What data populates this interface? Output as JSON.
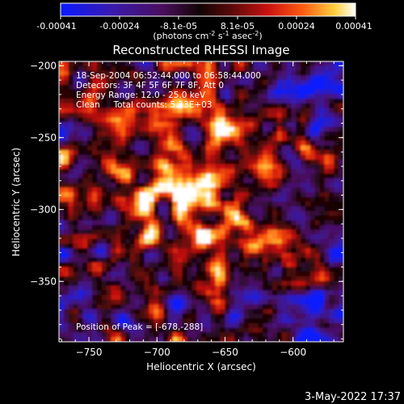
{
  "colorbar": {
    "ticks": [
      "-0.00041",
      "-0.00024",
      "-8.1e-05",
      "8.1e-05",
      "0.00024",
      "0.00041"
    ],
    "range": [
      -0.00041,
      0.00041
    ],
    "units_main": "(photons cm",
    "units_sup1": "-2",
    "units_mid1": " s",
    "units_sup2": "-1",
    "units_mid2": " asec",
    "units_sup3": "-2",
    "units_end": ")"
  },
  "chart_data": {
    "type": "heatmap",
    "title": "Reconstructed RHESSI Image",
    "xlabel": "Heliocentric X (arcsec)",
    "ylabel": "Heliocentric Y (arcsec)",
    "xlim": [
      -772,
      -563
    ],
    "ylim": [
      -392,
      -197
    ],
    "xticks": [
      -750,
      -700,
      -650,
      -600
    ],
    "yticks": [
      -200,
      -250,
      -300,
      -350
    ],
    "xtick_labels": [
      "−750",
      "−700",
      "−650",
      "−600"
    ],
    "ytick_labels": [
      "−200",
      "−250",
      "−300",
      "−350"
    ],
    "peak": [
      -678,
      -288
    ],
    "colormap": "rainbow (blue-purple-red-orange-yellow-white)",
    "info_lines": [
      "18-Sep-2004 06:52:44.000 to 06:58:44.000",
      "Detectors: 3F 4F 5F 6F 7F 8F, Att 0",
      "Energy Range: 12.0 - 25.0 keV",
      "Clean     Total counts: 5.33E+03"
    ],
    "peak_label": "Position of Peak = [-678,-288]"
  },
  "timestamp": "3-May-2022 17:37"
}
